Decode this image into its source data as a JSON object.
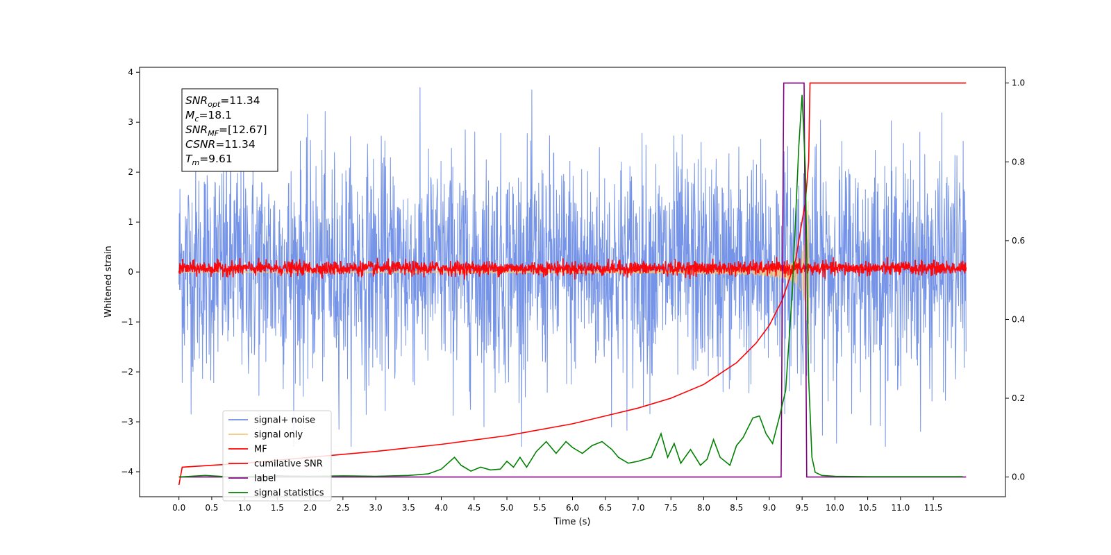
{
  "chart_data": {
    "type": "line",
    "title": "",
    "xlabel": "Time (s)",
    "ylabel": "Whitened strain",
    "xlim": [
      -0.6,
      12.6
    ],
    "ylim": [
      -4.5,
      4.1
    ],
    "y2lim": [
      -0.05,
      1.04
    ],
    "x_ticks": [
      0.0,
      0.5,
      1.0,
      1.5,
      2.0,
      2.5,
      3.0,
      3.5,
      4.0,
      4.5,
      5.0,
      5.5,
      6.0,
      6.5,
      7.0,
      7.5,
      8.0,
      8.5,
      9.0,
      9.5,
      10.0,
      10.5,
      11.0,
      11.5
    ],
    "x_tick_labels": [
      "0.0",
      "0.5",
      "1.0",
      "1.5",
      "2.0",
      "2.5",
      "3.0",
      "3.5",
      "4.0",
      "4.5",
      "5.0",
      "5.5",
      "6.0",
      "6.5",
      "7.0",
      "7.5",
      "8.0",
      "8.5",
      "9.0",
      "9.5",
      "10.0",
      "10.5",
      "11.0",
      "11.5"
    ],
    "y_ticks": [
      4,
      3,
      2,
      1,
      0,
      -1,
      -2,
      -3,
      -4
    ],
    "y_tick_labels": [
      "4",
      "3",
      "2",
      "1",
      "0",
      "−1",
      "−2",
      "−3",
      "−4"
    ],
    "y2_ticks": [
      1.0,
      0.8,
      0.6,
      0.4,
      0.2,
      0.0
    ],
    "y2_tick_labels": [
      "1.0",
      "0.8",
      "0.6",
      "0.4",
      "0.2",
      "0.0"
    ],
    "grid": false,
    "legend_position": "lower-left",
    "annotation_box": {
      "lines": [
        {
          "sym": "SNR",
          "sub": "opt",
          "val": "=11.34"
        },
        {
          "sym": "M",
          "sub": "c",
          "val": "=18.1"
        },
        {
          "sym": "SNR",
          "sub": "MF",
          "val": "=[12.67]"
        },
        {
          "sym": "CSNR",
          "sub": "",
          "val": "=11.34"
        },
        {
          "sym": "T",
          "sub": "m",
          "val": "=9.61"
        }
      ]
    },
    "series": [
      {
        "name": "signal+ noise",
        "axis": "left",
        "color": "#6f8ee6",
        "kind": "noise",
        "x_range": [
          0.0,
          12.0
        ],
        "envelope": [
          -3.5,
          3.7
        ]
      },
      {
        "name": "signal only",
        "axis": "left",
        "color": "#f5c778",
        "kind": "chirp",
        "x_range": [
          0.0,
          9.61
        ],
        "peak_time": 9.61,
        "peak_amplitude": 1.9
      },
      {
        "name": "MF",
        "axis": "left",
        "color": "#ff0000",
        "kind": "noise",
        "x_range": [
          0.0,
          12.0
        ],
        "envelope": [
          -0.15,
          0.3
        ]
      },
      {
        "name": "cumilative SNR",
        "axis": "right",
        "color": "#ff0000",
        "kind": "line",
        "x": [
          0.0,
          0.05,
          1.0,
          2.0,
          3.0,
          4.0,
          5.0,
          6.0,
          7.0,
          7.5,
          8.0,
          8.5,
          8.8,
          9.0,
          9.2,
          9.4,
          9.55,
          9.6,
          9.62,
          12.0
        ],
        "y": [
          -0.02,
          0.025,
          0.035,
          0.05,
          0.065,
          0.083,
          0.105,
          0.135,
          0.175,
          0.2,
          0.235,
          0.29,
          0.34,
          0.385,
          0.45,
          0.55,
          0.7,
          0.8,
          1.0,
          1.0
        ]
      },
      {
        "name": "label",
        "axis": "right",
        "color": "#800080",
        "kind": "step",
        "x": [
          0.0,
          9.18,
          9.22,
          9.53,
          9.57,
          12.0
        ],
        "y": [
          0.0,
          0.0,
          1.0,
          1.0,
          0.0,
          0.0
        ]
      },
      {
        "name": "signal statistics",
        "axis": "right",
        "color": "#008000",
        "kind": "line",
        "x": [
          0.0,
          0.4,
          0.8,
          1.5,
          2.0,
          2.5,
          3.0,
          3.5,
          3.8,
          4.0,
          4.2,
          4.3,
          4.45,
          4.6,
          4.75,
          4.9,
          5.0,
          5.1,
          5.2,
          5.3,
          5.45,
          5.6,
          5.75,
          5.9,
          6.0,
          6.15,
          6.3,
          6.45,
          6.6,
          6.7,
          6.85,
          7.0,
          7.2,
          7.35,
          7.45,
          7.55,
          7.65,
          7.8,
          7.95,
          8.05,
          8.15,
          8.25,
          8.4,
          8.5,
          8.6,
          8.75,
          8.85,
          8.95,
          9.05,
          9.15,
          9.25,
          9.35,
          9.45,
          9.5,
          9.55,
          9.6,
          9.65,
          9.7,
          9.8,
          10.0,
          10.5,
          11.0,
          11.5,
          11.95
        ],
        "y": [
          0.0,
          0.004,
          0.0,
          0.003,
          0.002,
          0.003,
          0.002,
          0.004,
          0.008,
          0.02,
          0.05,
          0.03,
          0.015,
          0.025,
          0.018,
          0.02,
          0.04,
          0.025,
          0.05,
          0.025,
          0.065,
          0.09,
          0.06,
          0.09,
          0.075,
          0.06,
          0.08,
          0.09,
          0.07,
          0.05,
          0.035,
          0.04,
          0.05,
          0.11,
          0.05,
          0.085,
          0.035,
          0.07,
          0.03,
          0.045,
          0.095,
          0.05,
          0.03,
          0.08,
          0.1,
          0.15,
          0.155,
          0.11,
          0.085,
          0.15,
          0.22,
          0.47,
          0.84,
          0.97,
          0.78,
          0.25,
          0.05,
          0.012,
          0.004,
          0.002,
          0.001,
          0.001,
          0.001,
          0.001
        ]
      }
    ]
  }
}
